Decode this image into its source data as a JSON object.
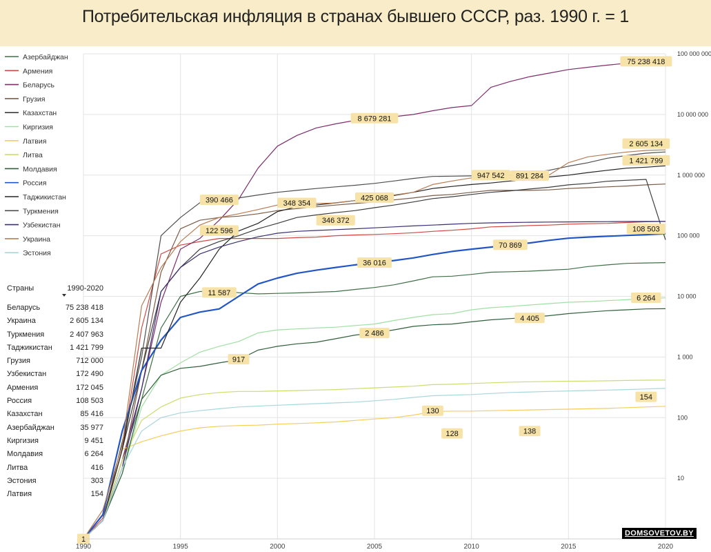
{
  "title": "Потребительская инфляция в странах бывшего СССР,  раз. 1990 г. = 1",
  "chart_data": {
    "type": "line",
    "title": "Потребительская инфляция в странах бывшего СССР,  раз. 1990 г. = 1",
    "x": [
      1990,
      1991,
      1992,
      1993,
      1994,
      1995,
      1996,
      1997,
      1998,
      1999,
      2000,
      2001,
      2002,
      2003,
      2004,
      2005,
      2006,
      2007,
      2008,
      2009,
      2010,
      2011,
      2012,
      2013,
      2014,
      2015,
      2016,
      2017,
      2018,
      2019,
      2020
    ],
    "xlim": [
      1990,
      2020
    ],
    "x_ticks": [
      1990,
      1995,
      2000,
      2005,
      2010,
      2015,
      2020
    ],
    "yscale": "log",
    "ylim": [
      1,
      100000000
    ],
    "y_ticks": [
      {
        "value": 10,
        "label": "10"
      },
      {
        "value": 100,
        "label": "100"
      },
      {
        "value": 1000,
        "label": "1 000"
      },
      {
        "value": 10000,
        "label": "10 000"
      },
      {
        "value": 100000,
        "label": "100 000"
      },
      {
        "value": 1000000,
        "label": "1 000 000"
      },
      {
        "value": 10000000,
        "label": "10 000 000"
      },
      {
        "value": 100000000,
        "label": "100 000 000"
      }
    ],
    "grid": "horizontal",
    "legend_position": "top-left",
    "series": [
      {
        "name": "Азербайджан",
        "color": "#3d6e45",
        "values": [
          1,
          2,
          20,
          200,
          3000,
          10000,
          12000,
          12200,
          11500,
          11000,
          11200,
          11400,
          11700,
          12000,
          13000,
          14000,
          15500,
          18000,
          21000,
          21500,
          23000,
          25000,
          25500,
          26000,
          27000,
          28000,
          31000,
          33000,
          35000,
          35500,
          35977
        ]
      },
      {
        "name": "Армения",
        "color": "#d04a43",
        "values": [
          1,
          2.2,
          30,
          3000,
          50000,
          70000,
          80000,
          90000,
          90000,
          90000,
          90000,
          93000,
          95000,
          100000,
          103000,
          105000,
          108000,
          112000,
          118000,
          123000,
          130000,
          140000,
          143000,
          147000,
          150000,
          155000,
          158000,
          160000,
          165000,
          170000,
          172045
        ]
      },
      {
        "name": "Беларусь",
        "color": "#7d2b6b",
        "values": [
          1,
          2,
          20,
          300,
          8000,
          60000,
          90000,
          180000,
          400000,
          1300000,
          3000000,
          4500000,
          6000000,
          7000000,
          8000000,
          8679281,
          9200000,
          10000000,
          11500000,
          13000000,
          14000000,
          28000000,
          35000000,
          42000000,
          48000000,
          55000000,
          60000000,
          65000000,
          70000000,
          72000000,
          75238418
        ]
      },
      {
        "name": "Грузия",
        "color": "#7a5a45",
        "values": [
          1,
          2,
          15,
          600,
          25000,
          130000,
          180000,
          200000,
          210000,
          230000,
          260000,
          280000,
          300000,
          320000,
          340000,
          360000,
          390000,
          420000,
          460000,
          480000,
          520000,
          560000,
          560000,
          560000,
          570000,
          600000,
          620000,
          640000,
          660000,
          690000,
          712000
        ]
      },
      {
        "name": "Казахстан",
        "color": "#3b3b3b",
        "values": [
          1,
          2,
          30,
          600,
          12000,
          30000,
          60000,
          80000,
          100000,
          130000,
          160000,
          200000,
          220000,
          240000,
          260000,
          290000,
          320000,
          360000,
          410000,
          440000,
          480000,
          520000,
          550000,
          590000,
          630000,
          690000,
          730000,
          790000,
          820000,
          850000,
          85416
        ]
      },
      {
        "name": "Киргизия",
        "color": "#9fe0a2",
        "values": [
          1,
          2,
          12,
          150,
          500,
          800,
          1200,
          1500,
          1800,
          2500,
          2800,
          2900,
          3000,
          3100,
          3300,
          3500,
          4000,
          4500,
          5000,
          5200,
          6000,
          6500,
          6800,
          7200,
          7600,
          8000,
          8200,
          8500,
          8800,
          9200,
          9451
        ]
      },
      {
        "name": "Латвия",
        "color": "#f5cd5a",
        "values": [
          1,
          2,
          30,
          40,
          50,
          60,
          68,
          72,
          74,
          75,
          78,
          80,
          82,
          85,
          90,
          95,
          100,
          110,
          125,
          128,
          128,
          130,
          132,
          134,
          136,
          138,
          140,
          142,
          146,
          150,
          154
        ]
      },
      {
        "name": "Литва",
        "color": "#cddc6e",
        "values": [
          1,
          2,
          20,
          90,
          150,
          210,
          240,
          260,
          270,
          270,
          275,
          280,
          285,
          290,
          300,
          310,
          320,
          330,
          350,
          355,
          365,
          375,
          385,
          390,
          395,
          398,
          400,
          405,
          410,
          414,
          416
        ]
      },
      {
        "name": "Молдавия",
        "color": "#2f5f3a",
        "values": [
          1,
          2,
          12,
          200,
          500,
          650,
          700,
          800,
          900,
          1300,
          1500,
          1650,
          1750,
          2000,
          2300,
          2500,
          2800,
          3200,
          3400,
          3500,
          3800,
          4100,
          4300,
          4500,
          4800,
          5200,
          5500,
          5800,
          6000,
          6200,
          6264
        ]
      },
      {
        "name": "Россия",
        "color": "#2255c4",
        "values": [
          1,
          2.5,
          60,
          600,
          1900,
          4500,
          5500,
          6200,
          10000,
          16000,
          20000,
          24000,
          27000,
          30000,
          33000,
          36016,
          39000,
          43000,
          49000,
          55000,
          60000,
          65000,
          70869,
          76000,
          84000,
          91000,
          95000,
          98000,
          101000,
          104000,
          108503
        ]
      },
      {
        "name": "Таджикистан",
        "color": "#222222",
        "values": [
          1,
          2,
          30,
          1400,
          1400,
          8000,
          20000,
          60000,
          120000,
          160000,
          250000,
          300000,
          320000,
          348354,
          380000,
          420000,
          460000,
          520000,
          600000,
          650000,
          700000,
          740000,
          800000,
          860000,
          930000,
          1000000,
          1100000,
          1200000,
          1300000,
          1350000,
          1421799
        ]
      },
      {
        "name": "Туркмения",
        "color": "#4d4d4d",
        "values": [
          1,
          2,
          40,
          1000,
          100000,
          200000,
          350000,
          390466,
          420000,
          470000,
          520000,
          560000,
          600000,
          640000,
          680000,
          730000,
          800000,
          880000,
          950000,
          960000,
          970000,
          980000,
          1000000,
          1100000,
          1200000,
          1400000,
          1600000,
          1900000,
          2100000,
          2300000,
          2407963
        ]
      },
      {
        "name": "Узбекистан",
        "color": "#3a2d70",
        "values": [
          1,
          2,
          15,
          300,
          12000,
          30000,
          50000,
          65000,
          80000,
          96000,
          110000,
          118000,
          122000,
          126000,
          130000,
          135000,
          140000,
          145000,
          150000,
          155000,
          160000,
          163000,
          165000,
          167000,
          168000,
          169000,
          170000,
          171000,
          171500,
          172000,
          172490
        ]
      },
      {
        "name": "Украина",
        "color": "#b77b52",
        "values": [
          1,
          3,
          35,
          7000,
          30000,
          80000,
          150000,
          200000,
          230000,
          270000,
          320000,
          340000,
          340000,
          346372,
          380000,
          425068,
          470000,
          520000,
          700000,
          800000,
          900000,
          947542,
          891284,
          880000,
          1000000,
          1600000,
          2000000,
          2200000,
          2400000,
          2550000,
          2605134
        ]
      },
      {
        "name": "Эстония",
        "color": "#a9d6dc",
        "values": [
          1,
          2,
          15,
          60,
          100,
          120,
          130,
          140,
          150,
          155,
          160,
          165,
          170,
          175,
          180,
          190,
          200,
          215,
          230,
          235,
          240,
          250,
          260,
          265,
          270,
          275,
          280,
          285,
          290,
          297,
          303
        ]
      }
    ],
    "annotations": [
      {
        "text": "75 238 418",
        "x": 2019,
        "y": 75238418
      },
      {
        "text": "8 679 281",
        "x": 2005,
        "y": 8679281
      },
      {
        "text": "2 605 134",
        "x": 2019,
        "y": 3300000
      },
      {
        "text": "1 421 799",
        "x": 2019,
        "y": 1750000
      },
      {
        "text": "947 542",
        "x": 2011,
        "y": 1000000
      },
      {
        "text": "891 284",
        "x": 2013,
        "y": 980000
      },
      {
        "text": "390 466",
        "x": 1997,
        "y": 390466
      },
      {
        "text": "348 354",
        "x": 2001,
        "y": 348354
      },
      {
        "text": "425 068",
        "x": 2005,
        "y": 425068
      },
      {
        "text": "346 372",
        "x": 2003,
        "y": 180000
      },
      {
        "text": "122 596",
        "x": 1997,
        "y": 122596
      },
      {
        "text": "108 503",
        "x": 2019,
        "y": 130000
      },
      {
        "text": "70 869",
        "x": 2012,
        "y": 70869
      },
      {
        "text": "36 016",
        "x": 2005,
        "y": 36016
      },
      {
        "text": "11 587",
        "x": 1997,
        "y": 11587
      },
      {
        "text": "6 264",
        "x": 2019,
        "y": 9500
      },
      {
        "text": "4 405",
        "x": 2013,
        "y": 4405
      },
      {
        "text": "2 486",
        "x": 2005,
        "y": 2486
      },
      {
        "text": "917",
        "x": 1998,
        "y": 917
      },
      {
        "text": "154",
        "x": 2019,
        "y": 220
      },
      {
        "text": "130",
        "x": 2008,
        "y": 130
      },
      {
        "text": "138",
        "x": 2013,
        "y": 60
      },
      {
        "text": "128",
        "x": 2009,
        "y": 55
      },
      {
        "text": "1",
        "x": 1990,
        "y": 1
      }
    ]
  },
  "table": {
    "header": {
      "col1": "Страны",
      "col2": "1990-2020"
    },
    "rows": [
      {
        "name": "Беларусь",
        "value": "75 238 418"
      },
      {
        "name": "Украина",
        "value": "2 605 134"
      },
      {
        "name": "Туркмения",
        "value": "2 407 963"
      },
      {
        "name": "Таджикистан",
        "value": "1 421 799"
      },
      {
        "name": "Грузия",
        "value": "712 000"
      },
      {
        "name": "Узбекистан",
        "value": "172 490"
      },
      {
        "name": "Армения",
        "value": "172 045"
      },
      {
        "name": "Россия",
        "value": "108 503"
      },
      {
        "name": "Казахстан",
        "value": "85 416"
      },
      {
        "name": "Азербайджан",
        "value": "35 977"
      },
      {
        "name": "Киргизия",
        "value": "9 451"
      },
      {
        "name": "Молдавия",
        "value": "6 264"
      },
      {
        "name": "Литва",
        "value": "416"
      },
      {
        "name": "Эстония",
        "value": "303"
      },
      {
        "name": "Латвия",
        "value": "154"
      }
    ]
  },
  "watermark": "DOMSOVETOV.BY",
  "colors": {
    "title_background": "#f8edc8",
    "annotation_background": "#f7e3a8",
    "grid": "#e3e3e3"
  }
}
